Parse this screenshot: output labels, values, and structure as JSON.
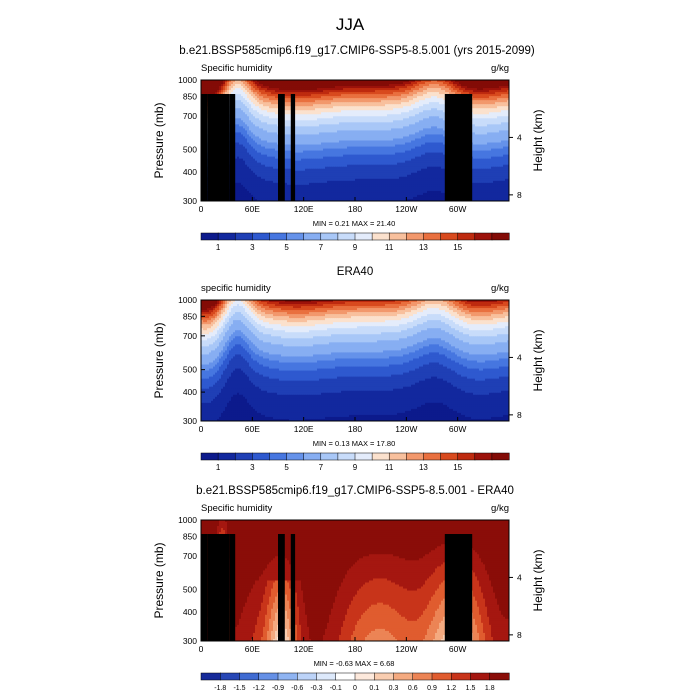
{
  "figure": {
    "title": "JJA"
  },
  "colors": {
    "seq_palette": [
      "#0c1a8c",
      "#12289e",
      "#1f3fb5",
      "#2e59cf",
      "#4676e0",
      "#6592ea",
      "#87aef2",
      "#a8c7f7",
      "#c8dcfa",
      "#e4ecfb",
      "#fbe1cd",
      "#f8c09d",
      "#f2986c",
      "#e9703f",
      "#d84a1e",
      "#be2a0f",
      "#9c120a",
      "#830b06"
    ],
    "diff_palette": [
      "#162a9a",
      "#2747b6",
      "#3f6bd2",
      "#6590e6",
      "#8fb4f2",
      "#bcd3f8",
      "#dde9fb",
      "#ffffff",
      "#fde9dc",
      "#f9cdb0",
      "#f4aa80",
      "#ec8455",
      "#e05c2f",
      "#c8341a",
      "#a51710",
      "#8a0d08"
    ],
    "topography": "#000000"
  },
  "chart_data": [
    {
      "type": "contour",
      "title": "b.e21.BSSP585cmip6.f19_g17.CMIP6-SSP5-8.5.001 (yrs 2015-2099)",
      "left_label": "Specific humidity",
      "right_label": "g/kg",
      "xlabel": "",
      "ylabel": "Pressure (mb)",
      "ylabel_right": "Height (km)",
      "x_ticks": [
        "0",
        "60E",
        "120E",
        "180",
        "120W",
        "60W"
      ],
      "y_ticks": [
        "300",
        "400",
        "500",
        "700",
        "850",
        "1000"
      ],
      "height_ticks": [
        "8",
        "4"
      ],
      "xlim": [
        0,
        360
      ],
      "ylim": [
        1000,
        300
      ],
      "min_max_text": "MIN =   0.21  MAX =  21.40",
      "colorbar_labels": [
        "1",
        "3",
        "5",
        "7",
        "9",
        "11",
        "13",
        "15"
      ],
      "colorbar_levels": [
        0.5,
        1,
        1.5,
        2,
        2.5,
        3,
        4,
        5,
        6,
        7,
        8,
        9,
        10,
        11,
        12,
        13,
        14,
        15
      ],
      "min": 0.21,
      "max": 21.4,
      "scale": 1.28,
      "topography": [
        [
          0,
          8,
          37,
          1000
        ],
        [
          8,
          33,
          60,
          1000
        ],
        [
          33,
          40,
          100,
          1000
        ],
        [
          90,
          98,
          70,
          1000
        ],
        [
          105,
          110,
          70,
          1000
        ],
        [
          285,
          317,
          70,
          1000
        ]
      ]
    },
    {
      "type": "contour",
      "title": "ERA40",
      "left_label": "specific humidity",
      "right_label": "g/kg",
      "xlabel": "",
      "ylabel": "Pressure (mb)",
      "ylabel_right": "Height (km)",
      "x_ticks": [
        "0",
        "60E",
        "120E",
        "180",
        "120W",
        "60W"
      ],
      "y_ticks": [
        "300",
        "400",
        "500",
        "700",
        "850",
        "1000"
      ],
      "height_ticks": [
        "8",
        "4"
      ],
      "xlim": [
        0,
        360
      ],
      "ylim": [
        1000,
        300
      ],
      "min_max_text": "MIN =   0.13  MAX =  17.80",
      "colorbar_labels": [
        "1",
        "3",
        "5",
        "7",
        "9",
        "11",
        "13",
        "15"
      ],
      "colorbar_levels": [
        0.5,
        1,
        1.5,
        2,
        2.5,
        3,
        4,
        5,
        6,
        7,
        8,
        9,
        10,
        11,
        12,
        13,
        14,
        15
      ],
      "min": 0.13,
      "max": 17.8,
      "scale": 1.0,
      "topography": []
    },
    {
      "type": "contour",
      "title": "b.e21.BSSP585cmip6.f19_g17.CMIP6-SSP5-8.5.001 - ERA40",
      "left_label": "Specific humidity",
      "right_label": "g/kg",
      "xlabel": "",
      "ylabel": "Pressure (mb)",
      "ylabel_right": "Height (km)",
      "x_ticks": [
        "0",
        "60E",
        "120E",
        "180",
        "120W",
        "60W"
      ],
      "y_ticks": [
        "300",
        "400",
        "500",
        "700",
        "850",
        "1000"
      ],
      "height_ticks": [
        "8",
        "4"
      ],
      "xlim": [
        0,
        360
      ],
      "ylim": [
        1000,
        300
      ],
      "min_max_text": "MIN =  -0.63  MAX =   6.68",
      "colorbar_labels": [
        "-1.8",
        "-1.5",
        "-1.2",
        "-0.9",
        "-0.6",
        "-0.3",
        "-0.1",
        "0",
        "0.1",
        "0.3",
        "0.6",
        "0.9",
        "1.2",
        "1.5",
        "1.8"
      ],
      "colorbar_levels": [
        -1.8,
        -1.5,
        -1.2,
        -0.9,
        -0.6,
        -0.3,
        -0.1,
        0,
        0.1,
        0.3,
        0.6,
        0.9,
        1.2,
        1.5,
        1.8
      ],
      "min": -0.63,
      "max": 6.68,
      "topography": [
        [
          0,
          8,
          37,
          1000
        ],
        [
          8,
          33,
          60,
          1000
        ],
        [
          33,
          40,
          100,
          1000
        ],
        [
          90,
          98,
          70,
          1000
        ],
        [
          105,
          110,
          70,
          1000
        ],
        [
          285,
          317,
          70,
          1000
        ]
      ]
    }
  ]
}
